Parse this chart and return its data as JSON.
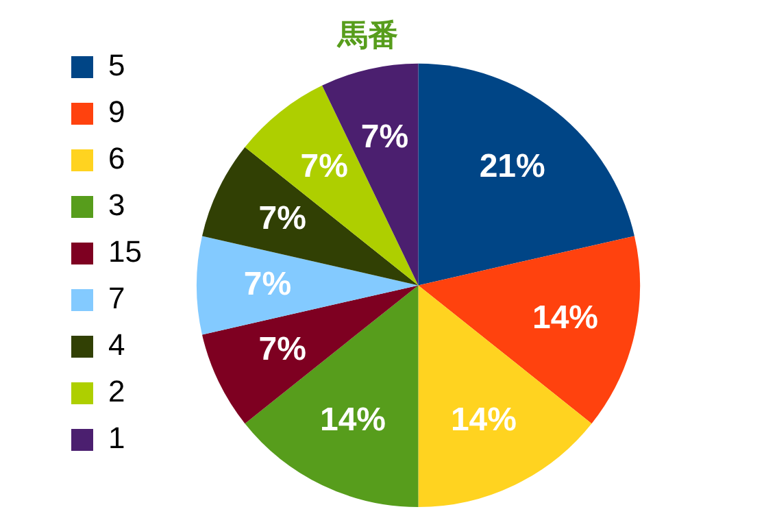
{
  "chart_data": {
    "type": "pie",
    "title": "馬番",
    "categories": [
      "5",
      "9",
      "6",
      "3",
      "15",
      "7",
      "4",
      "2",
      "1"
    ],
    "values": [
      21,
      14,
      14,
      14,
      7,
      7,
      7,
      7,
      7
    ],
    "value_labels": [
      "21%",
      "14%",
      "14%",
      "14%",
      "7%",
      "7%",
      "7%",
      "7%",
      "7%"
    ],
    "colors": [
      "#004586",
      "#ff420e",
      "#ffd320",
      "#579d1c",
      "#7e0021",
      "#83caff",
      "#314004",
      "#aecf00",
      "#4b1f6f"
    ],
    "legend": "left"
  }
}
